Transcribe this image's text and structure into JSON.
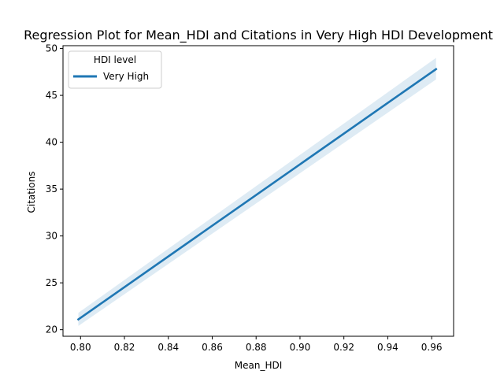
{
  "chart_data": {
    "type": "line",
    "title": "Regression Plot for Mean_HDI and Citations in Very High HDI Development",
    "xlabel": "Mean_HDI",
    "ylabel": "Citations",
    "xlim": [
      0.792,
      0.97
    ],
    "ylim": [
      19.3,
      50.3
    ],
    "x_ticks": [
      0.8,
      0.82,
      0.84,
      0.86,
      0.88,
      0.9,
      0.92,
      0.94,
      0.96
    ],
    "x_tick_labels": [
      "0.80",
      "0.82",
      "0.84",
      "0.86",
      "0.88",
      "0.90",
      "0.92",
      "0.94",
      "0.96"
    ],
    "y_ticks": [
      20,
      25,
      30,
      35,
      40,
      45,
      50
    ],
    "y_tick_labels": [
      "20",
      "25",
      "30",
      "35",
      "40",
      "45",
      "50"
    ],
    "grid": false,
    "legend": {
      "title": "HDI level",
      "placement": "top-left",
      "entries": [
        "Very High"
      ]
    },
    "series": [
      {
        "name": "Very High",
        "color": "#1f77b4",
        "band_color": "#1f77b4",
        "x": [
          0.799,
          0.962
        ],
        "y": [
          21.1,
          47.8
        ],
        "ci_lower": [
          20.4,
          46.7
        ],
        "ci_upper": [
          21.8,
          49.0
        ]
      }
    ]
  }
}
